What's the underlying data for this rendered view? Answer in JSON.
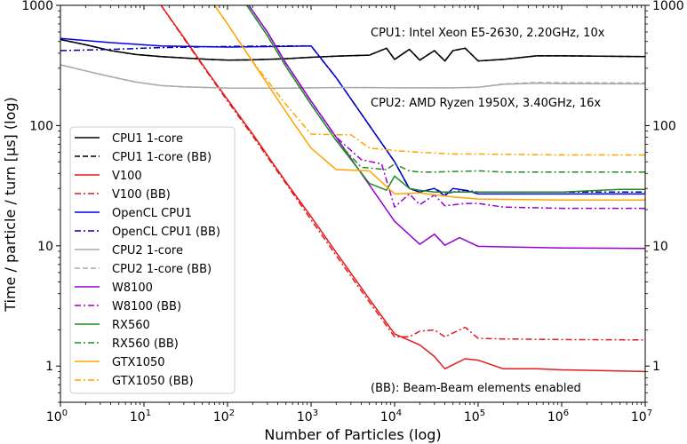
{
  "chart_data": {
    "type": "line",
    "xlabel": "Number of Particles (log)",
    "ylabel": "Time / particle / turn [µs] (log)",
    "xscale": "log",
    "yscale": "log",
    "xlim": [
      1,
      10000000
    ],
    "ylim": [
      0.5,
      1000
    ],
    "grid": false,
    "legend_position": "left",
    "x_tick_labels": [
      {
        "base": "10",
        "exp": "0"
      },
      {
        "base": "10",
        "exp": "1"
      },
      {
        "base": "10",
        "exp": "2"
      },
      {
        "base": "10",
        "exp": "3"
      },
      {
        "base": "10",
        "exp": "4"
      },
      {
        "base": "10",
        "exp": "5"
      },
      {
        "base": "10",
        "exp": "6"
      },
      {
        "base": "10",
        "exp": "7"
      }
    ],
    "y_tick_labels": [
      "1",
      "10",
      "100",
      "1000"
    ],
    "annotations": [
      "CPU1: Intel Xeon E5-2630, 2.20GHz, 10x",
      "CPU2: AMD Ryzen 1950X, 3.40GHz, 16x",
      "(BB): Beam-Beam elements enabled"
    ],
    "series": [
      {
        "name": "CPU1 1-core",
        "color": "#000000",
        "dash": "solid",
        "x": [
          1,
          2,
          4,
          8,
          16,
          30,
          60,
          100,
          200,
          500,
          1000,
          2000,
          5000,
          8000,
          10000,
          15000,
          20000,
          30000,
          40000,
          50000,
          70000,
          100000,
          200000,
          500000,
          1000000,
          10000000
        ],
        "y": [
          520,
          470,
          420,
          390,
          375,
          365,
          355,
          350,
          352,
          360,
          370,
          378,
          385,
          440,
          355,
          430,
          350,
          420,
          345,
          420,
          440,
          345,
          355,
          380,
          380,
          375
        ]
      },
      {
        "name": "CPU1 1-core (BB)",
        "color": "#000000",
        "dash": "dashed",
        "x": [
          1,
          2,
          4,
          8,
          16,
          30,
          60,
          100,
          200,
          500,
          1000,
          2000,
          5000,
          8000,
          10000,
          15000,
          20000,
          30000,
          40000,
          50000,
          70000,
          100000,
          200000,
          500000,
          1000000,
          10000000
        ],
        "y": [
          520,
          470,
          420,
          390,
          375,
          365,
          355,
          350,
          352,
          360,
          370,
          378,
          385,
          440,
          355,
          430,
          350,
          420,
          345,
          420,
          440,
          345,
          355,
          380,
          380,
          375
        ]
      },
      {
        "name": "V100",
        "color": "#e41a1c",
        "dash": "solid",
        "x": [
          16,
          30,
          60,
          100,
          200,
          500,
          1000,
          2000,
          5000,
          10000,
          20000,
          30000,
          40000,
          70000,
          100000,
          200000,
          500000,
          1000000,
          10000000
        ],
        "y": [
          1000,
          540,
          270,
          165,
          85,
          34,
          17.5,
          8.8,
          3.6,
          1.85,
          1.5,
          1.2,
          0.95,
          1.15,
          1.12,
          0.95,
          0.95,
          0.93,
          0.9
        ]
      },
      {
        "name": "V100 (BB)",
        "color": "#e41a1c",
        "dash": "dashdot",
        "x": [
          16,
          30,
          60,
          100,
          200,
          500,
          1000,
          2000,
          5000,
          10000,
          15000,
          20000,
          30000,
          40000,
          70000,
          100000,
          200000,
          500000,
          1000000,
          10000000
        ],
        "y": [
          1000,
          530,
          265,
          160,
          82,
          33,
          16.5,
          8.3,
          3.4,
          1.75,
          1.75,
          1.95,
          2.0,
          1.75,
          2.1,
          1.7,
          1.68,
          1.67,
          1.66,
          1.65
        ]
      },
      {
        "name": "OpenCL CPU1",
        "color": "#0000ee",
        "dash": "solid",
        "x": [
          1,
          4,
          16,
          100,
          500,
          1000,
          2000,
          5000,
          10000,
          15000,
          20000,
          30000,
          40000,
          50000,
          70000,
          100000,
          1000000,
          10000000
        ],
        "y": [
          530,
          490,
          460,
          450,
          455,
          460,
          250,
          100,
          50,
          30,
          28,
          30,
          26,
          30,
          29,
          27,
          27,
          27
        ]
      },
      {
        "name": "OpenCL CPU1 (BB)",
        "color": "#0000aa",
        "dash": "dashdot",
        "x": [
          1,
          4,
          16,
          100,
          500,
          1000,
          2000,
          5000,
          10000,
          15000,
          20000,
          30000,
          40000,
          50000,
          70000,
          100000,
          1000000,
          10000000
        ],
        "y": [
          420,
          430,
          445,
          455,
          460,
          460,
          250,
          100,
          50,
          30,
          28,
          30,
          27,
          28,
          29,
          28,
          28,
          28
        ]
      },
      {
        "name": "CPU2 1-core",
        "color": "#aaaaaa",
        "dash": "solid",
        "x": [
          1,
          2,
          4,
          8,
          16,
          30,
          60,
          100,
          200,
          500,
          1000,
          2000,
          5000,
          10000,
          20000,
          50000,
          100000,
          200000,
          500000,
          1000000,
          10000000
        ],
        "y": [
          320,
          285,
          255,
          230,
          215,
          210,
          207,
          205,
          205,
          205,
          206,
          207,
          207,
          206,
          206,
          206,
          208,
          220,
          225,
          223,
          222
        ]
      },
      {
        "name": "CPU2 1-core (BB)",
        "color": "#aaaaaa",
        "dash": "dashed",
        "x": [
          1,
          2,
          4,
          8,
          16,
          30,
          60,
          100,
          200,
          500,
          1000,
          2000,
          5000,
          10000,
          20000,
          50000,
          100000,
          200000,
          500000,
          1000000,
          10000000
        ],
        "y": [
          320,
          285,
          255,
          230,
          215,
          210,
          207,
          205,
          205,
          205,
          206,
          207,
          207,
          206,
          206,
          206,
          208,
          222,
          228,
          227,
          226
        ]
      },
      {
        "name": "W8100",
        "color": "#9400d3",
        "dash": "solid",
        "x": [
          180,
          300,
          500,
          1000,
          2000,
          5000,
          10000,
          20000,
          30000,
          40000,
          60000,
          100000,
          200000,
          1000000,
          10000000
        ],
        "y": [
          1000,
          600,
          330,
          160,
          80,
          32,
          16,
          10.3,
          12.5,
          10.1,
          11.7,
          9.9,
          9.8,
          9.6,
          9.5
        ]
      },
      {
        "name": "W8100 (BB)",
        "color": "#9400d3",
        "dash": "dashdot",
        "x": [
          180,
          300,
          500,
          1000,
          2000,
          4000,
          7000,
          10000,
          15000,
          20000,
          30000,
          40000,
          70000,
          100000,
          200000,
          1000000,
          10000000
        ],
        "y": [
          1000,
          600,
          330,
          160,
          80,
          52,
          48,
          21,
          27,
          22,
          26.5,
          21.5,
          22.5,
          22.5,
          21,
          20.5,
          20.5
        ]
      },
      {
        "name": "RX560",
        "color": "#228b22",
        "dash": "solid",
        "x": [
          170,
          300,
          500,
          1000,
          2000,
          5000,
          8000,
          10000,
          15000,
          20000,
          30000,
          50000,
          100000,
          1000000,
          5000000,
          10000000
        ],
        "y": [
          1000,
          560,
          310,
          150,
          75,
          33,
          29,
          38,
          30,
          29,
          28,
          28,
          28,
          28,
          29.5,
          29.5
        ]
      },
      {
        "name": "RX560 (BB)",
        "color": "#228b22",
        "dash": "dashdot",
        "x": [
          170,
          300,
          500,
          1000,
          2000,
          4000,
          8000,
          10000,
          15000,
          20000,
          30000,
          50000,
          100000,
          200000,
          1000000,
          10000000
        ],
        "y": [
          1000,
          560,
          310,
          150,
          75,
          45,
          43,
          48,
          42,
          41,
          41,
          41.5,
          42,
          41,
          41,
          41
        ]
      },
      {
        "name": "GTX1050",
        "color": "#ffa500",
        "dash": "solid",
        "x": [
          70,
          100,
          200,
          500,
          1000,
          2000,
          5000,
          10000,
          20000,
          50000,
          100000,
          1000000,
          10000000
        ],
        "y": [
          1000,
          700,
          340,
          130,
          65,
          43,
          42,
          27,
          27.5,
          25.5,
          24.5,
          24,
          24
        ]
      },
      {
        "name": "GTX1050 (BB)",
        "color": "#ffa500",
        "dash": "dashdot",
        "x": [
          70,
          100,
          200,
          500,
          1000,
          2000,
          3000,
          5000,
          8000,
          10000,
          20000,
          50000,
          100000,
          1000000,
          10000000
        ],
        "y": [
          1000,
          700,
          340,
          150,
          85,
          84,
          84,
          65,
          63,
          62,
          60,
          58,
          58,
          57,
          57
        ]
      }
    ]
  }
}
